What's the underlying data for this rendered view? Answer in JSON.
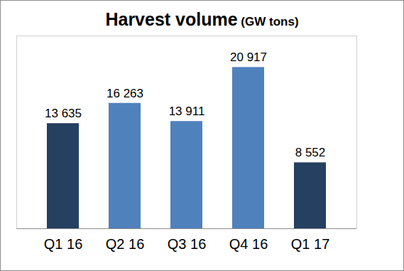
{
  "chart_data": {
    "type": "bar",
    "title": "Harvest volume (GW tons)",
    "categories": [
      "Q1 16",
      "Q2 16",
      "Q3 16",
      "Q4 16",
      "Q1 17"
    ],
    "values": [
      13635,
      16263,
      13911,
      20917,
      8552
    ],
    "value_labels": [
      "13 635",
      "16 263",
      "13 911",
      "20 917",
      "8 552"
    ],
    "colors": [
      "#254061",
      "#4F81BD",
      "#4F81BD",
      "#4F81BD",
      "#254061"
    ],
    "ylim": [
      0,
      25000
    ],
    "grid": false,
    "data_labels": true,
    "tick_labels": "x"
  }
}
